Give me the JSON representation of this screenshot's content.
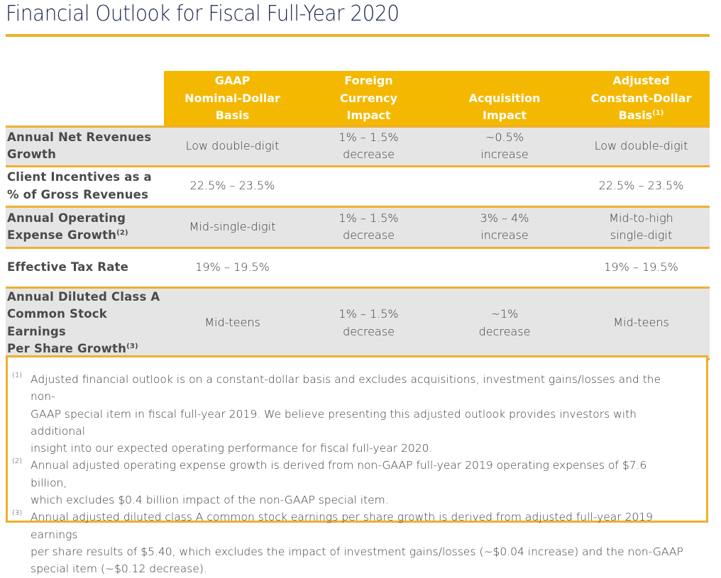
{
  "page": {
    "title": "Financial Outlook for Fiscal Full-Year 2020",
    "accent_color": "#EEB02C",
    "header_fill_color": "#F5B800",
    "row_shade_color": "#E6E5E5"
  },
  "table": {
    "columns": [
      {
        "label": "",
        "footnote": ""
      },
      {
        "label_lines": [
          "GAAP",
          "Nominal-Dollar",
          "Basis"
        ],
        "footnote": ""
      },
      {
        "label_lines": [
          "Foreign",
          "Currency",
          "Impact"
        ],
        "footnote": ""
      },
      {
        "label_lines": [
          "Acquisition",
          "Impact"
        ],
        "footnote": ""
      },
      {
        "label_lines": [
          "Adjusted",
          "Constant-Dollar",
          "Basis"
        ],
        "footnote": "(1)"
      }
    ],
    "rows": [
      {
        "label_lines": [
          "Annual Net Revenues",
          "Growth"
        ],
        "footnote": "",
        "shaded": true,
        "gaap": [
          "Low double-digit"
        ],
        "fx": [
          "1% – 1.5%",
          "decrease"
        ],
        "acquisition": [
          "~0.5%",
          "increase"
        ],
        "adjusted": [
          "Low double-digit"
        ]
      },
      {
        "label_lines": [
          "Client Incentives as a",
          "% of Gross Revenues"
        ],
        "footnote": "",
        "shaded": false,
        "gaap": [
          "22.5% – 23.5%"
        ],
        "fx": [],
        "acquisition": [],
        "adjusted": [
          "22.5% – 23.5%"
        ]
      },
      {
        "label_lines": [
          "Annual Operating",
          "Expense Growth"
        ],
        "footnote": "(2)",
        "shaded": true,
        "gaap": [
          "Mid-single-digit"
        ],
        "fx": [
          "1% – 1.5%",
          "decrease"
        ],
        "acquisition": [
          "3% – 4%",
          "increase"
        ],
        "adjusted": [
          "Mid-to-high",
          "single-digit"
        ]
      },
      {
        "label_lines": [
          "Effective Tax Rate"
        ],
        "footnote": "",
        "shaded": false,
        "gaap": [
          "19% – 19.5%"
        ],
        "fx": [],
        "acquisition": [],
        "adjusted": [
          "19% – 19.5%"
        ]
      },
      {
        "label_lines": [
          "Annual Diluted Class A",
          "Common Stock Earnings",
          "Per Share Growth"
        ],
        "footnote": "(3)",
        "shaded": true,
        "gaap": [
          "Mid-teens"
        ],
        "fx": [
          "1% – 1.5%",
          "decrease"
        ],
        "acquisition": [
          "~1%",
          "decrease"
        ],
        "adjusted": [
          "Mid-teens"
        ]
      }
    ]
  },
  "footnotes": [
    {
      "marker": "(1)",
      "lines": [
        "Adjusted financial outlook is on a constant-dollar basis and excludes acquisitions, investment gains/losses and the non-",
        "GAAP special item in fiscal full-year 2019. We believe presenting this adjusted outlook provides investors with additional",
        "insight into our expected operating performance for fiscal full-year 2020."
      ]
    },
    {
      "marker": "(2)",
      "lines": [
        "Annual adjusted operating expense growth is derived from non-GAAP full-year 2019 operating expenses of $7.6 billion,",
        "which excludes $0.4 billion impact of the non-GAAP special item."
      ]
    },
    {
      "marker": "(3)",
      "lines": [
        "Annual adjusted diluted class A common stock earnings per share growth is derived from adjusted full-year 2019 earnings",
        "per share results of $5.40, which excludes the impact of investment gains/losses (~$0.04 increase) and the non-GAAP",
        "special item (~$0.12 decrease)."
      ]
    }
  ]
}
